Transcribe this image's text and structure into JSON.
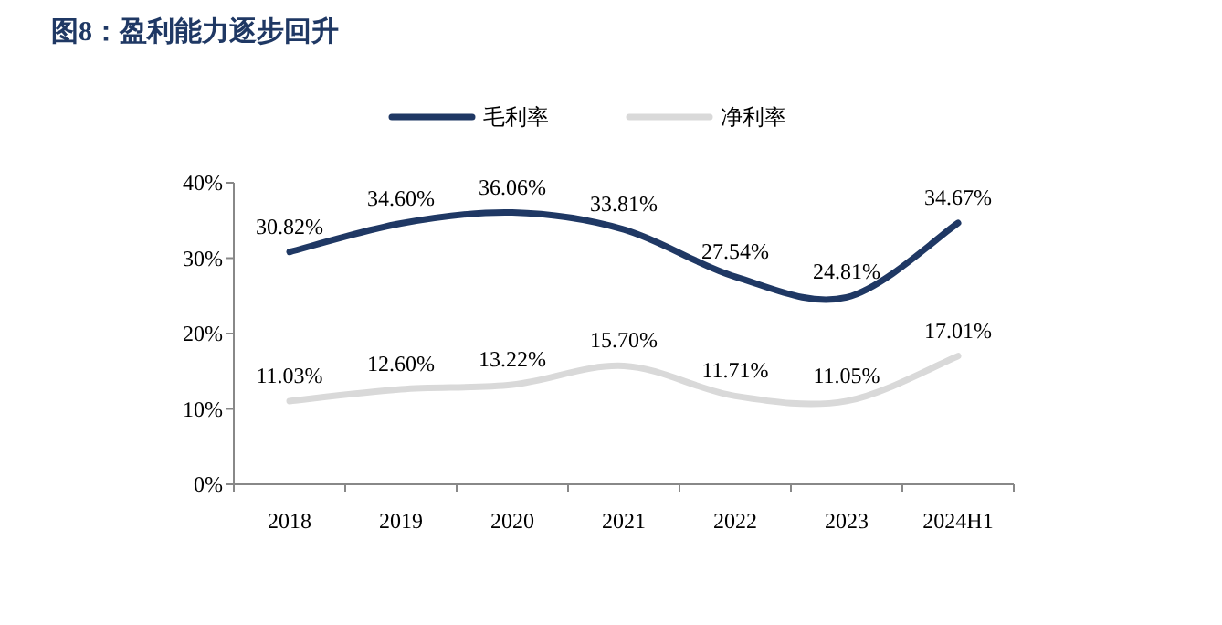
{
  "chart_data": {
    "type": "line",
    "title": "图8：盈利能力逐步回升",
    "categories": [
      "2018",
      "2019",
      "2020",
      "2021",
      "2022",
      "2023",
      "2024H1"
    ],
    "series": [
      {
        "name": "毛利率",
        "color": "#1f3864",
        "values": [
          30.82,
          34.6,
          36.06,
          33.81,
          27.54,
          24.81,
          34.67
        ],
        "value_labels": [
          "30.82%",
          "34.60%",
          "36.06%",
          "33.81%",
          "27.54%",
          "24.81%",
          "34.67%"
        ]
      },
      {
        "name": "净利率",
        "color": "#d9d9d9",
        "values": [
          11.03,
          12.6,
          13.22,
          15.7,
          11.71,
          11.05,
          17.01
        ],
        "value_labels": [
          "11.03%",
          "12.60%",
          "13.22%",
          "15.70%",
          "11.71%",
          "11.05%",
          "17.01%"
        ]
      }
    ],
    "ylim": [
      0,
      40
    ],
    "yticks": [
      {
        "value": 0,
        "label": "0%"
      },
      {
        "value": 10,
        "label": "10%"
      },
      {
        "value": 20,
        "label": "20%"
      },
      {
        "value": 30,
        "label": "30%"
      },
      {
        "value": 40,
        "label": "40%"
      }
    ],
    "grid": false,
    "legend": "top",
    "marker": "none",
    "line_style": "solid"
  }
}
